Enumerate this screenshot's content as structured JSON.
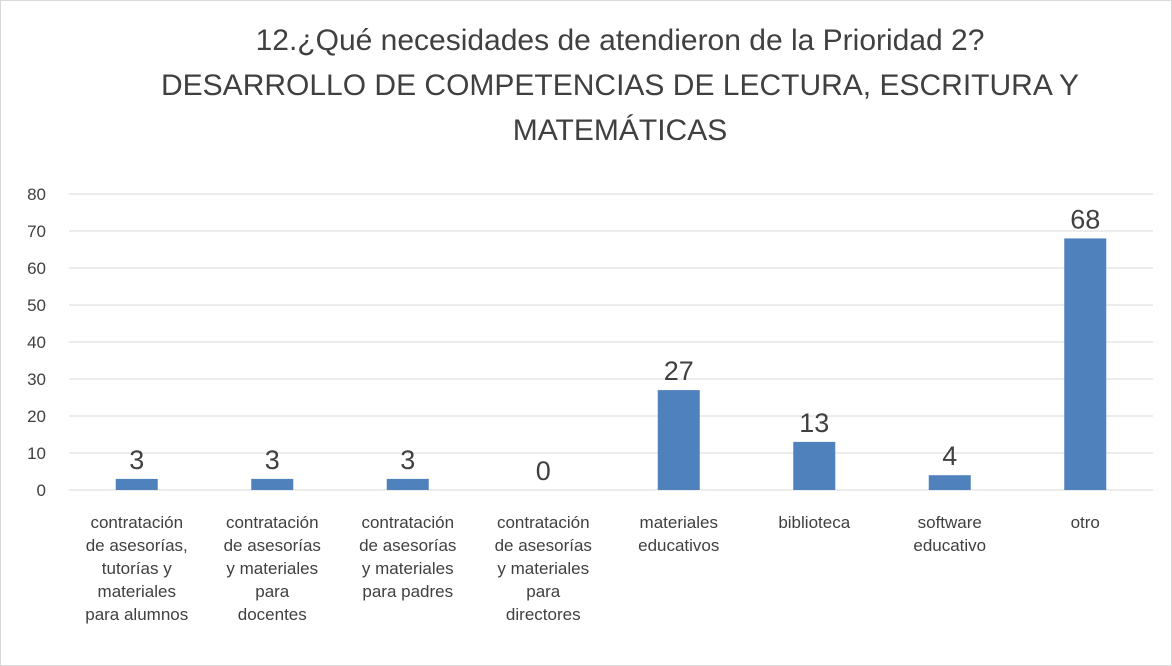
{
  "chart_data": {
    "type": "bar",
    "title": "12.¿Qué necesidades de atendieron de la  Prioridad 2?\nDESARROLLO DE COMPETENCIAS DE LECTURA, ESCRITURA Y\nMATEMÁTICAS",
    "categories": [
      "contratación\nde asesorías,\ntutorías y\nmateriales\npara alumnos",
      "contratación\nde asesorías\ny materiales\npara\ndocentes",
      "contratación\nde asesorías\ny materiales\npara padres",
      "contratación\nde asesorías\ny materiales\npara\ndirectores",
      "materiales\neducativos",
      "biblioteca",
      "software\neducativo",
      "otro"
    ],
    "values": [
      3,
      3,
      3,
      0,
      27,
      13,
      4,
      68
    ],
    "color": "#4f81bd",
    "ylim": [
      0,
      80
    ],
    "yticks": [
      0,
      10,
      20,
      30,
      40,
      50,
      60,
      70,
      80
    ],
    "grid": true
  }
}
